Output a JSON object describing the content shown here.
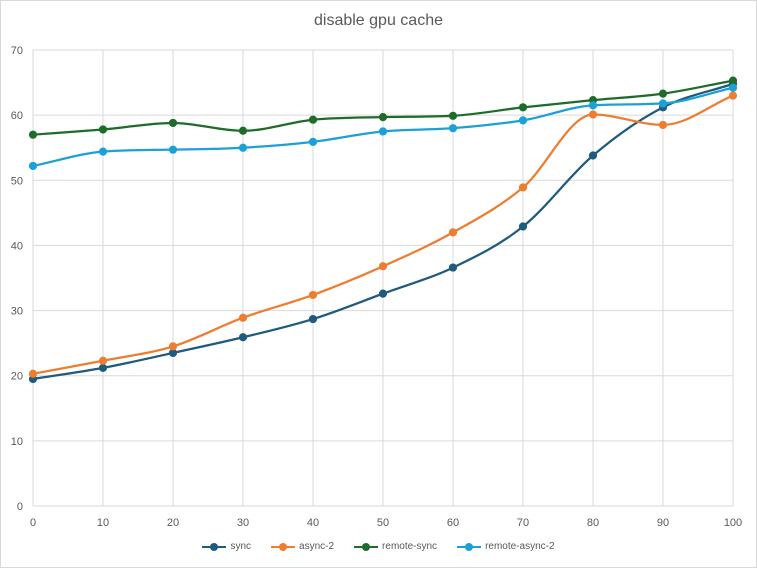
{
  "chart_data": {
    "type": "line",
    "title": "disable gpu cache",
    "xlabel": "",
    "ylabel": "",
    "x": [
      0,
      10,
      20,
      30,
      40,
      50,
      60,
      70,
      80,
      90,
      100
    ],
    "xlim": [
      0,
      100
    ],
    "ylim": [
      0,
      70
    ],
    "x_ticks": [
      0,
      10,
      20,
      30,
      40,
      50,
      60,
      70,
      80,
      90,
      100
    ],
    "y_ticks": [
      0,
      10,
      20,
      30,
      40,
      50,
      60,
      70
    ],
    "grid": true,
    "legend_position": "bottom",
    "smooth": true,
    "series": [
      {
        "name": "sync",
        "color": "#1f5b7e",
        "values": [
          19.5,
          21.2,
          23.5,
          25.9,
          28.7,
          32.6,
          36.6,
          42.9,
          53.8,
          61.2,
          64.8
        ]
      },
      {
        "name": "async-2",
        "color": "#ed7d31",
        "values": [
          20.3,
          22.3,
          24.5,
          28.9,
          32.4,
          36.8,
          42.0,
          48.9,
          60.1,
          58.5,
          63.0
        ]
      },
      {
        "name": "remote-sync",
        "color": "#1e6b2a",
        "values": [
          57.0,
          57.8,
          58.8,
          57.6,
          59.3,
          59.7,
          59.9,
          61.2,
          62.3,
          63.3,
          65.3
        ]
      },
      {
        "name": "remote-async-2",
        "color": "#1ca0d8",
        "values": [
          52.2,
          54.4,
          54.7,
          55.0,
          55.9,
          57.5,
          58.0,
          59.2,
          61.5,
          61.8,
          64.2
        ]
      }
    ]
  }
}
